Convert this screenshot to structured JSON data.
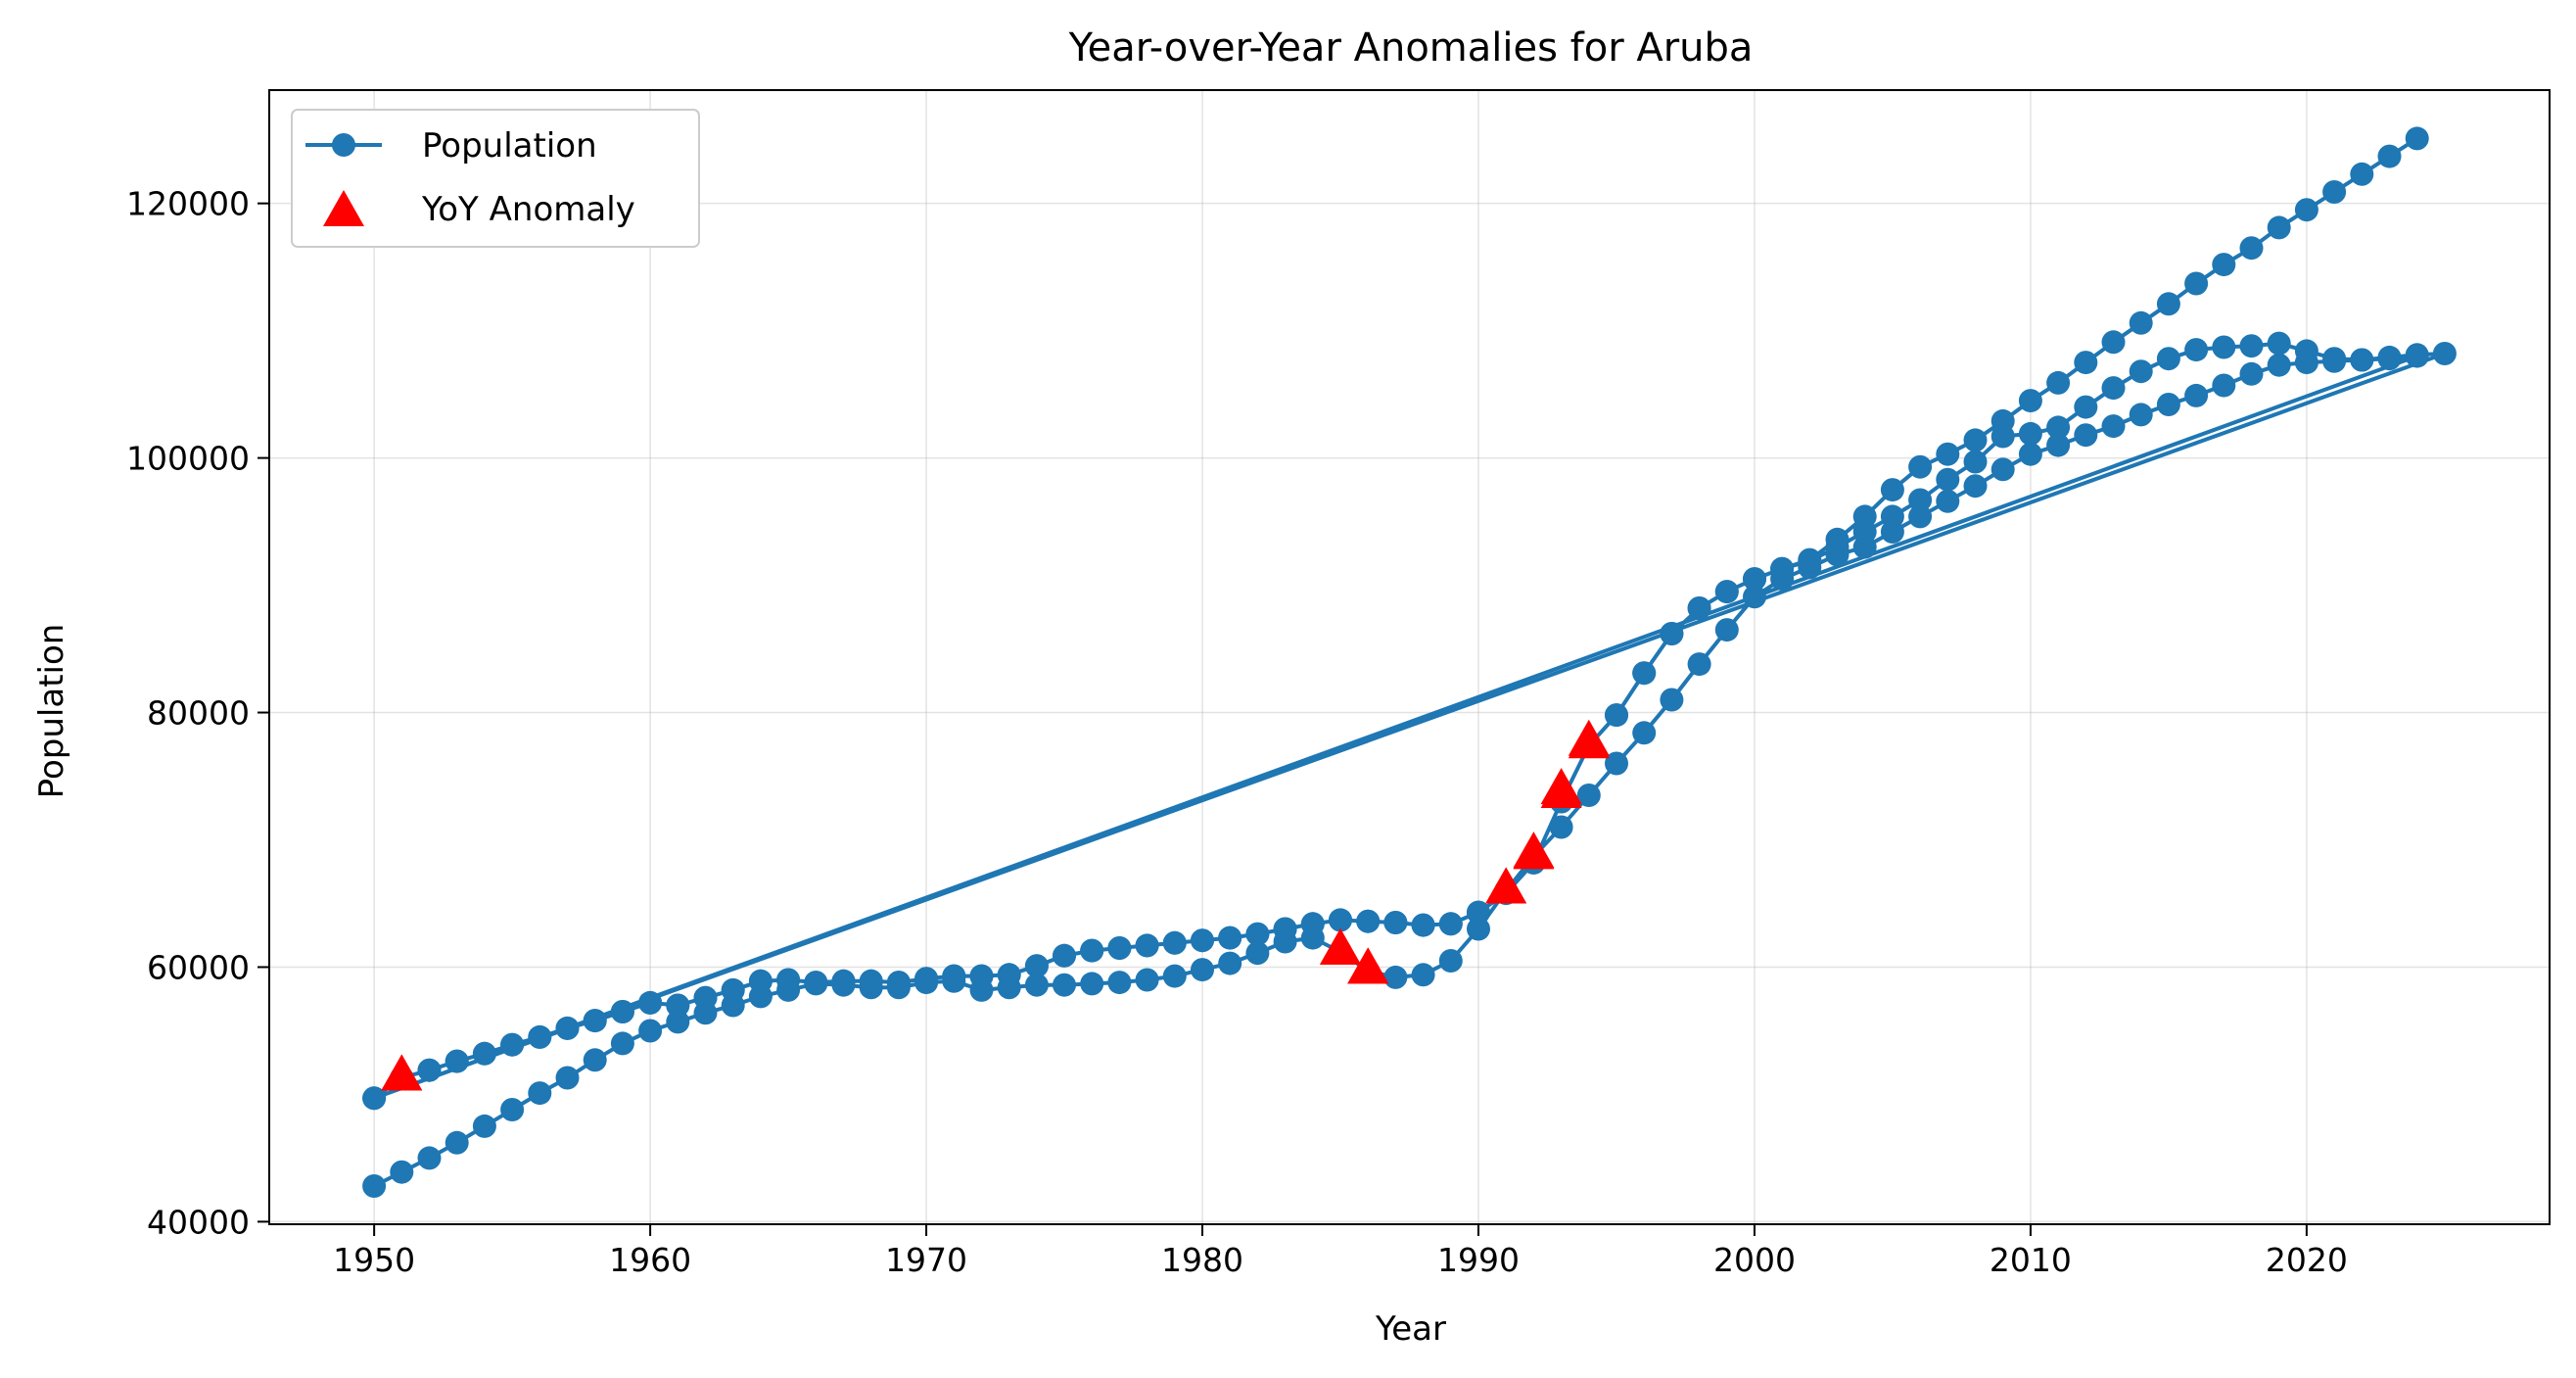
{
  "chart_data": {
    "type": "line",
    "title": "Year-over-Year Anomalies for Aruba",
    "xlabel": "Year",
    "ylabel": "Population",
    "xlim": [
      1946.2,
      2028.8
    ],
    "ylim": [
      39800,
      128900
    ],
    "xticks": [
      1950,
      1960,
      1970,
      1980,
      1990,
      2000,
      2010,
      2020
    ],
    "yticks": [
      40000,
      60000,
      80000,
      100000,
      120000
    ],
    "grid": true,
    "legend_position": "top-left",
    "series": [
      {
        "name": "Population",
        "color": "#1f77b4",
        "marker": "circle",
        "segments": [
          {
            "x": [
              1950,
              1951,
              1952,
              1953,
              1954,
              1955,
              1956,
              1957,
              1958,
              1959,
              1960,
              1961,
              1962,
              1963,
              1964,
              1965,
              1966,
              1967,
              1968,
              1969,
              1970,
              1971,
              1972,
              1973,
              1974,
              1975,
              1976,
              1977,
              1978,
              1979,
              1980,
              1981,
              1982,
              1983,
              1984,
              1985,
              1986,
              1987,
              1988,
              1989,
              1990,
              1991,
              1992,
              1993,
              1994,
              1995,
              1996,
              1997,
              1998,
              1999,
              2000,
              2001,
              2002,
              2003,
              2004,
              2005,
              2006,
              2007,
              2008,
              2009,
              2010,
              2011,
              2012,
              2013,
              2014,
              2015,
              2016,
              2017,
              2018,
              2019,
              2020,
              2021,
              2022,
              2023,
              2024
            ],
            "y": [
              42800,
              43900,
              45000,
              46200,
              47500,
              48800,
              50100,
              51300,
              52700,
              54000,
              55000,
              55700,
              56400,
              57000,
              57700,
              58200,
              58700,
              58600,
              58400,
              58400,
              58800,
              58900,
              58200,
              58400,
              58600,
              58600,
              58700,
              58800,
              59000,
              59300,
              59800,
              60300,
              61100,
              62000,
              62300,
              61200,
              59700,
              59200,
              59400,
              60500,
              63000,
              66000,
              68700,
              71000,
              73500,
              76000,
              78400,
              81000,
              83800,
              86500,
              89100,
              90500,
              91400,
              92400,
              93000,
              94200,
              95400,
              96600,
              97800,
              99100,
              100300,
              101000,
              101800,
              102500,
              103400,
              104200,
              104900,
              105700,
              106600,
              107300,
              107500,
              107600,
              107700,
              107800,
              108000
            ]
          },
          {
            "x": [
              1950,
              1951,
              1952,
              1953,
              1954,
              1955,
              1956,
              1957,
              1958,
              1959,
              1960,
              1961,
              1962,
              1963,
              1964,
              1965,
              1966,
              1967,
              1968,
              1969,
              1970,
              1971,
              1972,
              1973,
              1974,
              1975,
              1976,
              1977,
              1978,
              1979,
              1980,
              1981,
              1982,
              1983,
              1984,
              1985,
              1986,
              1987,
              1988,
              1989,
              1990,
              1991,
              1992,
              1993,
              1994,
              1995,
              1996,
              1997,
              1998,
              1999,
              2000,
              2001,
              2002,
              2003,
              2004,
              2005,
              2006,
              2007,
              2008,
              2009,
              2010,
              2011,
              2012,
              2013,
              2014,
              2015,
              2016,
              2017,
              2018,
              2019,
              2020,
              2021,
              2022,
              2023,
              2024,
              2025
            ],
            "y": [
              49700,
              51300,
              51900,
              52600,
              53200,
              53900,
              54500,
              55200,
              55800,
              56500,
              57200,
              57000,
              57600,
              58200,
              58900,
              59000,
              58800,
              58900,
              58900,
              58800,
              59100,
              59300,
              59300,
              59400,
              60100,
              60900,
              61300,
              61500,
              61700,
              61900,
              62100,
              62300,
              62600,
              63000,
              63400,
              63700,
              63600,
              63500,
              63300,
              63400,
              64300,
              65800,
              68200,
              73000,
              77400,
              79800,
              83100,
              86200,
              88200,
              89500,
              90500,
              91300,
              91900,
              93000,
              94200,
              95400,
              96700,
              98300,
              99700,
              101700,
              101900,
              102400,
              104000,
              105500,
              106800,
              107800,
              108500,
              108700,
              108800,
              109000,
              108400,
              107800,
              107700,
              107900,
              108100,
              108200
            ]
          },
          {
            "x": [
              1950,
              1951,
              1952,
              1953,
              1954,
              1955,
              1956,
              1957,
              1958,
              1959,
              1960,
              1961,
              1962,
              1963,
              1964,
              1965,
              1966,
              1967,
              1968,
              1969,
              1970,
              1971,
              1972,
              1973,
              1974,
              1975,
              1976,
              1977,
              1978,
              1979,
              1980,
              1981,
              1982,
              1983,
              1984,
              1985,
              1986,
              1987,
              1988,
              1989,
              1990,
              1991,
              1992,
              1993,
              1994,
              1995,
              1996,
              1997,
              1998,
              1999,
              2000,
              2001,
              2002,
              2003,
              2004,
              2005,
              2006,
              2007,
              2008,
              2009,
              2010,
              2011,
              2012,
              2013,
              2014,
              2015,
              2016,
              2017,
              2018,
              2019,
              2020,
              2021,
              2022,
              2023,
              2024
            ],
            "y": [
              49700,
              51300,
              51900,
              52600,
              53200,
              53900,
              54500,
              55200,
              55800,
              56500,
              57200,
              57000,
              57600,
              58200,
              58900,
              59000,
              58800,
              58900,
              58900,
              58800,
              59100,
              59300,
              59300,
              59400,
              60100,
              60900,
              61300,
              61500,
              61700,
              61900,
              62100,
              62300,
              62600,
              63000,
              63400,
              63700,
              63600,
              63500,
              63300,
              63400,
              64300,
              65800,
              68200,
              73000,
              77400,
              79800,
              83100,
              86200,
              88200,
              89500,
              90500,
              91300,
              92000,
              93600,
              95400,
              97500,
              99300,
              100300,
              101400,
              102900,
              104500,
              105900,
              107500,
              109100,
              110600,
              112100,
              113700,
              115200,
              116500,
              118100,
              119500,
              120900,
              122300,
              123700,
              125100
            ]
          }
        ]
      },
      {
        "name": "YoY Anomaly",
        "color": "#ff0000",
        "marker": "triangle",
        "x": [
          1951,
          1985,
          1986,
          1991,
          1992,
          1993,
          1994,
          1951,
          1985,
          1986,
          1991,
          1992,
          1993,
          1994
        ],
        "y": [
          51300,
          61200,
          59700,
          66000,
          68700,
          73500,
          77400,
          51300,
          61200,
          59700,
          66000,
          68800,
          73800,
          77600
        ]
      }
    ]
  }
}
